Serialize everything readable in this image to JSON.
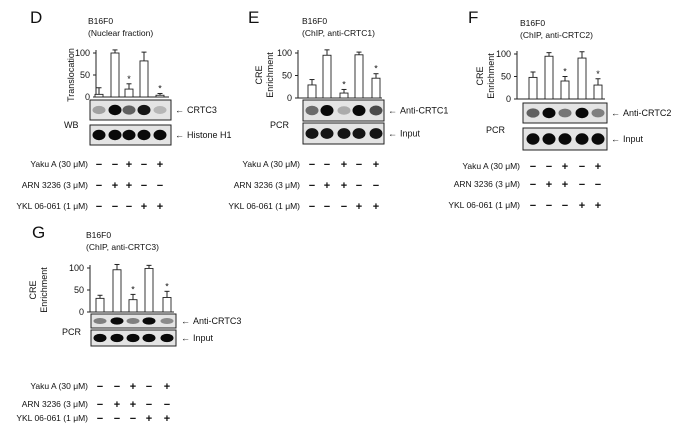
{
  "treatments": [
    {
      "label": "Yaku A (30 μM)",
      "signs": [
        "−",
        "−",
        "+",
        "−",
        "+"
      ]
    },
    {
      "label": "ARN 3236 (3 μM)",
      "signs": [
        "−",
        "+",
        "+",
        "−",
        "−"
      ]
    },
    {
      "label": "YKL 06-061 (1 μM)",
      "signs": [
        "−",
        "−",
        "−",
        "+",
        "+"
      ]
    }
  ],
  "chart_data": [
    {
      "panel": "D",
      "type": "bar",
      "title": [
        "B16F0",
        "(Nuclear fraction)"
      ],
      "ylabel": [
        "Translocation"
      ],
      "ylim": [
        0,
        100
      ],
      "yticks": [
        "0",
        "50",
        "100"
      ],
      "values": [
        6,
        100,
        18,
        82,
        4
      ],
      "errors": [
        15,
        7,
        12,
        20,
        4
      ],
      "significant": [
        false,
        false,
        true,
        false,
        true
      ],
      "star": "*",
      "method_label": "WB",
      "blots": [
        {
          "label": "CRTC3",
          "intensity": [
            0.3,
            1,
            0.6,
            0.95,
            0.2
          ]
        },
        {
          "label": "Histone H1",
          "intensity": [
            1,
            1,
            1,
            1,
            1
          ]
        }
      ]
    },
    {
      "panel": "E",
      "type": "bar",
      "title": [
        "B16F0",
        "(ChIP,  anti-CRTC1)"
      ],
      "ylabel": [
        "CRE",
        "Enrichment"
      ],
      "ylim": [
        0,
        100
      ],
      "yticks": [
        "0",
        "50",
        "100"
      ],
      "values": [
        29,
        95,
        11,
        96,
        44
      ],
      "errors": [
        12,
        12,
        8,
        6,
        10
      ],
      "significant": [
        false,
        false,
        true,
        false,
        true
      ],
      "star": "*",
      "method_label": "PCR",
      "blots": [
        {
          "label": "Anti-CRTC1",
          "intensity": [
            0.55,
            1,
            0.25,
            1,
            0.7
          ]
        },
        {
          "label": "Input",
          "intensity": [
            0.95,
            0.95,
            0.95,
            0.95,
            0.95
          ]
        }
      ]
    },
    {
      "panel": "F",
      "type": "bar",
      "title": [
        "B16F0",
        "(ChIP,  anti-CRTC2)"
      ],
      "ylabel": [
        "CRE",
        "Enrichment"
      ],
      "ylim": [
        0,
        100
      ],
      "yticks": [
        "0",
        "50",
        "100"
      ],
      "values": [
        48,
        95,
        40,
        91,
        31
      ],
      "errors": [
        12,
        8,
        10,
        14,
        14
      ],
      "significant": [
        false,
        false,
        true,
        false,
        true
      ],
      "star": "*",
      "method_label": "PCR",
      "blots": [
        {
          "label": "Anti-CRTC2",
          "intensity": [
            0.6,
            1,
            0.5,
            1,
            0.45
          ]
        },
        {
          "label": "Input",
          "intensity": [
            1,
            1,
            1,
            1,
            1
          ]
        }
      ]
    },
    {
      "panel": "G",
      "type": "bar",
      "title": [
        "B16F0",
        "(ChIP,  anti-CRTC3)"
      ],
      "ylabel": [
        "CRE",
        "Enrichment"
      ],
      "ylim": [
        0,
        100
      ],
      "yticks": [
        "0",
        "50",
        "100"
      ],
      "values": [
        31,
        96,
        28,
        99,
        33
      ],
      "errors": [
        7,
        12,
        12,
        7,
        14
      ],
      "significant": [
        false,
        false,
        true,
        false,
        true
      ],
      "star": "*",
      "method_label": "PCR",
      "blots": [
        {
          "label": "Anti-CRTC3",
          "intensity": [
            0.45,
            1,
            0.45,
            1,
            0.4
          ]
        },
        {
          "label": "Input",
          "intensity": [
            1,
            1,
            1,
            1,
            1
          ]
        }
      ]
    }
  ]
}
